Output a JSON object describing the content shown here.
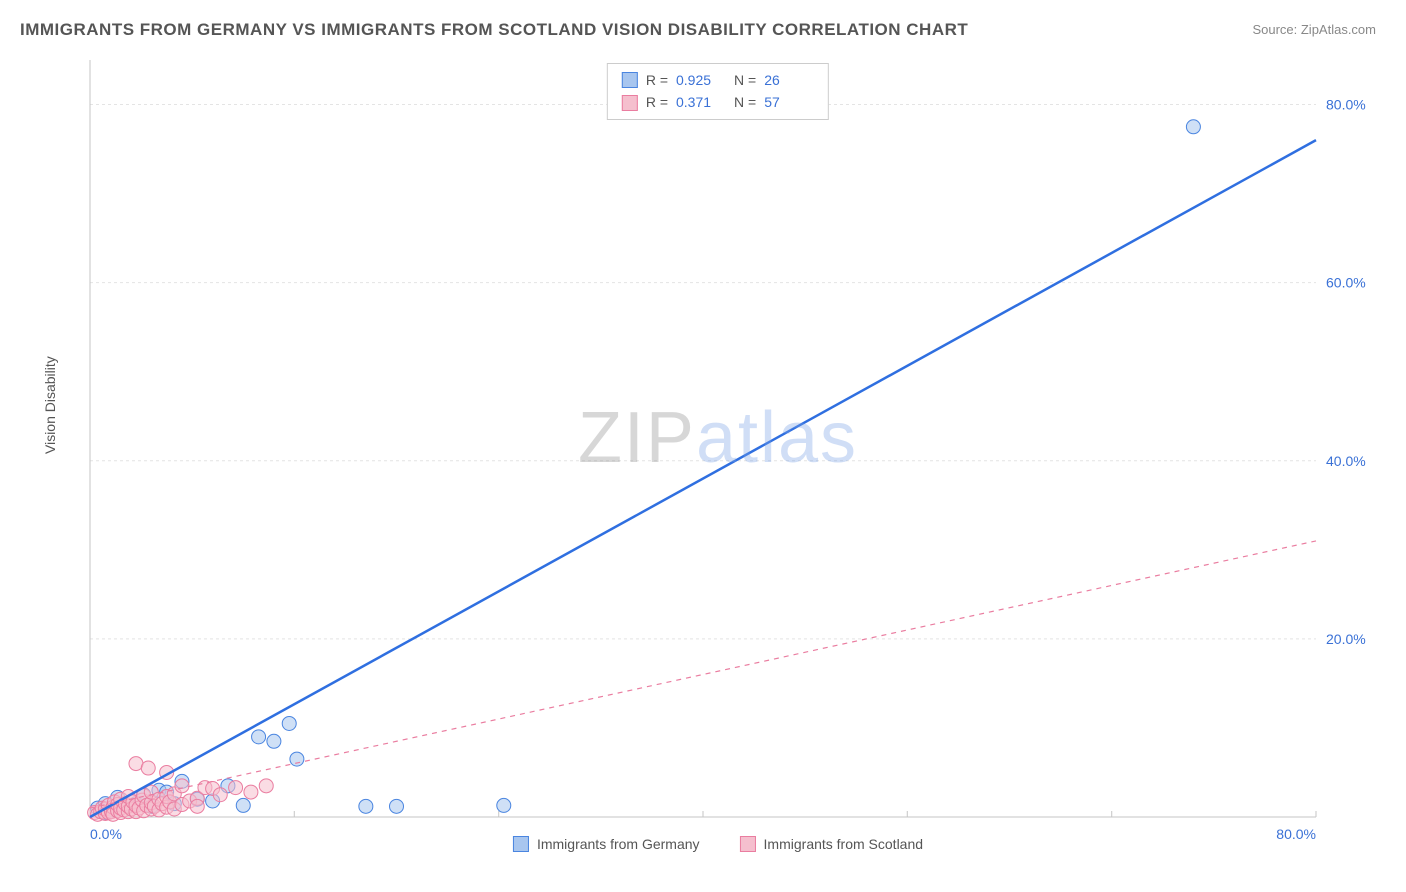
{
  "title": "IMMIGRANTS FROM GERMANY VS IMMIGRANTS FROM SCOTLAND VISION DISABILITY CORRELATION CHART",
  "source_prefix": "Source: ",
  "source_link": "ZipAtlas.com",
  "ylabel": "Vision Disability",
  "watermark_zip": "ZIP",
  "watermark_atlas": "atlas",
  "chart": {
    "type": "scatter",
    "background": "#ffffff",
    "grid_color": "#e4e4e4",
    "axis_color": "#c5c5c5",
    "tick_label_color": "#3a71d6",
    "tick_fontsize": 14,
    "xlim": [
      0,
      80
    ],
    "ylim": [
      0,
      85
    ],
    "x_ticks": [
      {
        "v": 0,
        "l": "0.0%"
      },
      {
        "v": 80,
        "l": "80.0%"
      }
    ],
    "y_ticks": [
      {
        "v": 20,
        "l": "20.0%"
      },
      {
        "v": 40,
        "l": "40.0%"
      },
      {
        "v": 60,
        "l": "60.0%"
      },
      {
        "v": 80,
        "l": "80.0%"
      }
    ],
    "x_grid_steps": [
      0,
      13.33,
      26.67,
      40,
      53.33,
      66.67,
      80
    ],
    "marker_radius": 7,
    "marker_opacity": 0.55,
    "series": [
      {
        "name": "Immigrants from Germany",
        "color_fill": "#a8c6ef",
        "color_stroke": "#4a85e0",
        "line_color": "#2f6fe0",
        "line_width": 2.5,
        "line_dash": "none",
        "R": "0.925",
        "N": "26",
        "trend": {
          "x1": 0,
          "y1": 0,
          "x2": 80,
          "y2": 76
        },
        "points": [
          [
            1,
            0.5
          ],
          [
            0.5,
            1
          ],
          [
            1,
            1.5
          ],
          [
            1.5,
            0.8
          ],
          [
            2,
            1
          ],
          [
            2.5,
            1.3
          ],
          [
            1.8,
            2.2
          ],
          [
            3,
            1.5
          ],
          [
            3.5,
            2.5
          ],
          [
            4,
            1.2
          ],
          [
            4.5,
            3
          ],
          [
            5,
            2.8
          ],
          [
            5.5,
            1.5
          ],
          [
            6,
            4
          ],
          [
            7,
            2
          ],
          [
            8,
            1.8
          ],
          [
            9,
            3.5
          ],
          [
            10,
            1.3
          ],
          [
            11,
            9
          ],
          [
            12,
            8.5
          ],
          [
            13,
            10.5
          ],
          [
            13.5,
            6.5
          ],
          [
            18,
            1.2
          ],
          [
            20,
            1.2
          ],
          [
            27,
            1.3
          ],
          [
            72,
            77.5
          ]
        ]
      },
      {
        "name": "Immigrants from Scotland",
        "color_fill": "#f5bfce",
        "color_stroke": "#ea7da0",
        "line_color": "#ea7da0",
        "line_width": 1.2,
        "line_dash": "5,5",
        "R": "0.371",
        "N": "57",
        "trend": {
          "x1": 0,
          "y1": 1,
          "x2": 80,
          "y2": 31
        },
        "points": [
          [
            0.3,
            0.5
          ],
          [
            0.5,
            0.3
          ],
          [
            0.7,
            0.6
          ],
          [
            0.8,
            1
          ],
          [
            1,
            0.4
          ],
          [
            1,
            0.9
          ],
          [
            1.2,
            0.5
          ],
          [
            1.2,
            1.3
          ],
          [
            1.4,
            0.6
          ],
          [
            1.5,
            1.1
          ],
          [
            1.5,
            0.3
          ],
          [
            1.6,
            1.7
          ],
          [
            1.8,
            0.7
          ],
          [
            1.8,
            1.4
          ],
          [
            2,
            0.5
          ],
          [
            2,
            1
          ],
          [
            2,
            2
          ],
          [
            2.2,
            0.8
          ],
          [
            2.3,
            1.5
          ],
          [
            2.5,
            0.6
          ],
          [
            2.5,
            1.2
          ],
          [
            2.5,
            2.3
          ],
          [
            2.7,
            0.9
          ],
          [
            2.8,
            1.7
          ],
          [
            3,
            0.6
          ],
          [
            3,
            1.3
          ],
          [
            3,
            6
          ],
          [
            3.2,
            1
          ],
          [
            3.4,
            1.9
          ],
          [
            3.5,
            0.7
          ],
          [
            3.5,
            2.4
          ],
          [
            3.7,
            1.3
          ],
          [
            3.8,
            5.5
          ],
          [
            4,
            0.9
          ],
          [
            4,
            1.6
          ],
          [
            4,
            2.8
          ],
          [
            4.2,
            1.2
          ],
          [
            4.5,
            0.8
          ],
          [
            4.5,
            2
          ],
          [
            4.7,
            1.5
          ],
          [
            5,
            5
          ],
          [
            5,
            1.1
          ],
          [
            5,
            2.3
          ],
          [
            5.2,
            1.7
          ],
          [
            5.5,
            0.9
          ],
          [
            5.5,
            2.6
          ],
          [
            6,
            1.4
          ],
          [
            6,
            3.5
          ],
          [
            6.5,
            1.8
          ],
          [
            7,
            2.1
          ],
          [
            7,
            1.2
          ],
          [
            7.5,
            3.3
          ],
          [
            8,
            3.2
          ],
          [
            8.5,
            2.5
          ],
          [
            9.5,
            3.3
          ],
          [
            10.5,
            2.8
          ],
          [
            11.5,
            3.5
          ]
        ]
      }
    ]
  },
  "legend_top": {
    "R_label": "R =",
    "N_label": "N ="
  }
}
